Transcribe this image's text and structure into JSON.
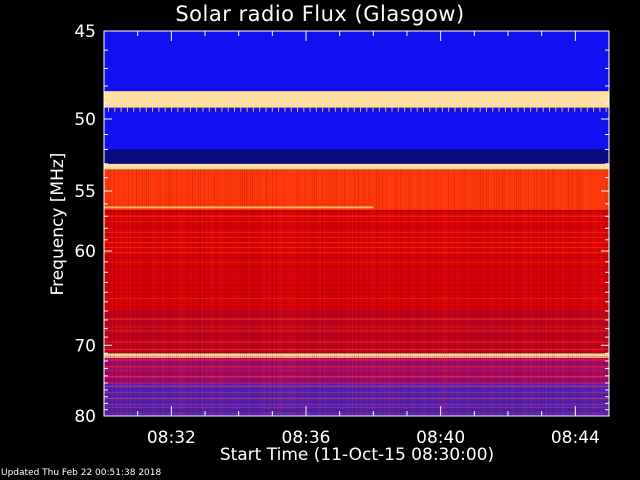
{
  "chart_data": {
    "type": "heatmap",
    "title": "Solar radio Flux (Glasgow)",
    "xlabel": "Start Time (11-Oct-15 08:30:00)",
    "ylabel": "Frequency [MHz]",
    "x_ticks": [
      "08:32",
      "08:36",
      "08:40",
      "08:44"
    ],
    "x_tick_minutes": [
      2,
      6,
      10,
      14
    ],
    "xlim_minutes": [
      0,
      15
    ],
    "y_ticks": [
      45,
      50,
      55,
      60,
      70,
      80
    ],
    "ylim": [
      45,
      80
    ],
    "y_scale": "reciprocal",
    "frequency_bands": [
      {
        "from": 45.0,
        "to": 48.3,
        "level": "blue"
      },
      {
        "from": 48.3,
        "to": 49.3,
        "level": "bright"
      },
      {
        "from": 49.3,
        "to": 52.0,
        "level": "blue"
      },
      {
        "from": 52.0,
        "to": 53.0,
        "level": "dark"
      },
      {
        "from": 53.0,
        "to": 53.4,
        "level": "bright"
      },
      {
        "from": 53.4,
        "to": 56.5,
        "level": "orange-red"
      },
      {
        "from": 56.5,
        "to": 66.0,
        "level": "red"
      },
      {
        "from": 66.0,
        "to": 71.0,
        "level": "red-magenta"
      },
      {
        "from": 71.0,
        "to": 71.6,
        "level": "bright"
      },
      {
        "from": 71.6,
        "to": 75.0,
        "level": "magenta"
      },
      {
        "from": 75.0,
        "to": 80.0,
        "level": "purple-blue"
      }
    ],
    "colors": {
      "blue": "#1010f0",
      "dark": "#0a0a80",
      "bright": "#ffe0a0",
      "orange-red": "#ff3a08",
      "red": "#d90000",
      "red-magenta": "#c00018",
      "magenta": "#a0086a",
      "purple-blue": "#4a22c0"
    }
  },
  "footer": {
    "updated": "Updated Thu Feb 22 00:51:38 2018"
  }
}
